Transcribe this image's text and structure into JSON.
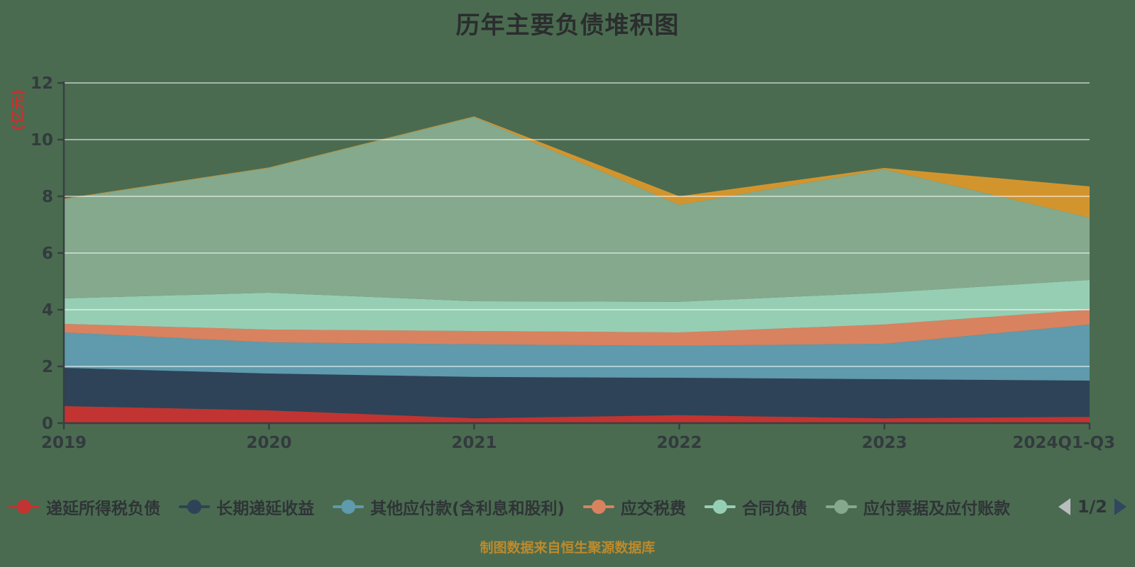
{
  "title": "历年主要负债堆积图",
  "source_note": "制图数据来自恒生聚源数据库",
  "legend": {
    "pager": {
      "current": "1/2",
      "prev_icon": "left-triangle",
      "next_icon": "right-triangle"
    }
  },
  "colors": {
    "background": "#4a6b50",
    "axis_line": "#383f42",
    "tick_label": "#333b3e",
    "gridline": "rgba(255,255,255,0.5)",
    "title_text": "#2b2d2e",
    "y_axis_name": "#c8302c",
    "source_text": "#bc8a2d",
    "pager_prev": "#b9bdbf",
    "pager_next": "#31475e"
  },
  "chart_data": {
    "type": "area",
    "stacked": true,
    "title": "历年主要负债堆积图",
    "categories": [
      "2019",
      "2020",
      "2021",
      "2022",
      "2023",
      "2024Q1-Q3"
    ],
    "xlabel": "",
    "ylabel": "(亿元)",
    "y_axis": {
      "name": "(亿元)",
      "min": 0,
      "max": 12,
      "interval": 2,
      "ticks": [
        0,
        2,
        4,
        6,
        8,
        10,
        12
      ]
    },
    "grid": true,
    "legend_position": "bottom",
    "series": [
      {
        "name": "递延所得税负债",
        "color": "#c23431",
        "in_legend": true,
        "values": [
          0.6,
          0.45,
          0.17,
          0.28,
          0.17,
          0.22
        ]
      },
      {
        "name": "长期递延收益",
        "color": "#2e4357",
        "in_legend": true,
        "values": [
          1.35,
          1.3,
          1.46,
          1.32,
          1.38,
          1.28
        ]
      },
      {
        "name": "其他应付款(含利息和股利)",
        "color": "#5f9aad",
        "in_legend": true,
        "values": [
          1.25,
          1.1,
          1.15,
          1.13,
          1.25,
          1.98
        ]
      },
      {
        "name": "应交税费",
        "color": "#d9825f",
        "in_legend": true,
        "values": [
          0.3,
          0.45,
          0.47,
          0.47,
          0.68,
          0.52
        ]
      },
      {
        "name": "合同负债",
        "color": "#96ceb4",
        "in_legend": true,
        "values": [
          0.9,
          1.3,
          1.05,
          1.08,
          1.12,
          1.05
        ]
      },
      {
        "name": "应付票据及应付账款",
        "color": "#84a98c",
        "in_legend": true,
        "values": [
          3.5,
          4.4,
          6.5,
          3.42,
          4.35,
          2.2
        ]
      },
      {
        "name": "",
        "color": "#d2952e",
        "in_legend": false,
        "values": [
          0.02,
          0.02,
          0.02,
          0.3,
          0.05,
          1.1
        ]
      }
    ]
  }
}
